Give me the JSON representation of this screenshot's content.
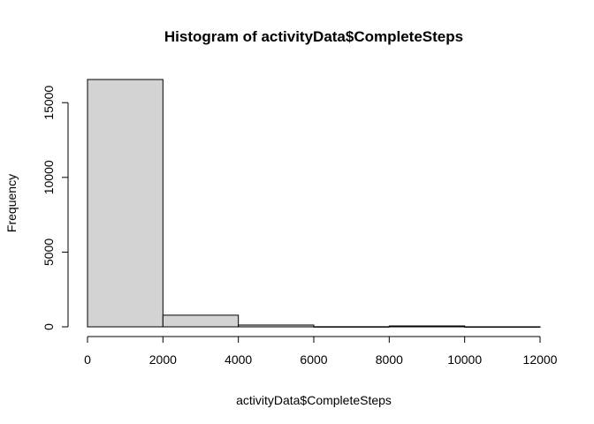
{
  "chart_data": {
    "type": "bar",
    "title": "Histogram of activityData$CompleteSteps",
    "xlabel": "activityData$CompleteSteps",
    "ylabel": "Frequency",
    "bins": [
      {
        "start": 0,
        "end": 2000,
        "count": 16550
      },
      {
        "start": 2000,
        "end": 4000,
        "count": 780
      },
      {
        "start": 4000,
        "end": 6000,
        "count": 120
      },
      {
        "start": 6000,
        "end": 8000,
        "count": 10
      },
      {
        "start": 8000,
        "end": 10000,
        "count": 60
      },
      {
        "start": 10000,
        "end": 12000,
        "count": 5
      }
    ],
    "x_ticks": [
      0,
      2000,
      4000,
      6000,
      8000,
      10000,
      12000
    ],
    "x_tick_labels": [
      "0",
      "2000",
      "4000",
      "6000",
      "8000",
      "10000",
      "12000"
    ],
    "y_ticks": [
      0,
      5000,
      10000,
      15000
    ],
    "y_tick_labels": [
      "0",
      "5000",
      "10000",
      "15000"
    ],
    "xlim": [
      0,
      12000
    ],
    "ylim": [
      0,
      16550
    ],
    "bar_fill": "#d3d3d3",
    "grid": false
  }
}
